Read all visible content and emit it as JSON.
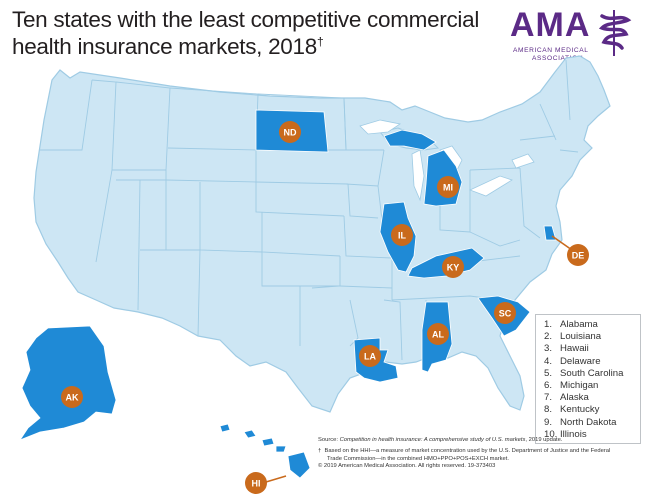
{
  "title": "Ten states with the least competitive commercial health insurance markets, 2018",
  "title_mark": "†",
  "logo": {
    "word": "AMA",
    "line1": "AMERICAN MEDICAL",
    "line2": "ASSOCIATION",
    "color": "#5b2a86"
  },
  "colors": {
    "ocean": "#ffffff",
    "land": "#cde6f4",
    "border": "#9fcbe4",
    "highlight": "#1f8ad6",
    "marker": "#c96a1c"
  },
  "markers": {
    "ND": "ND",
    "MI": "MI",
    "IL": "IL",
    "KY": "KY",
    "DE": "DE",
    "SC": "SC",
    "AL": "AL",
    "LA": "LA",
    "AK": "AK",
    "HI": "HI"
  },
  "legend": [
    {
      "num": "1.",
      "state": "Alabama"
    },
    {
      "num": "2.",
      "state": "Louisiana"
    },
    {
      "num": "3.",
      "state": "Hawaii"
    },
    {
      "num": "4.",
      "state": "Delaware"
    },
    {
      "num": "5.",
      "state": "South Carolina"
    },
    {
      "num": "6.",
      "state": "Michigan"
    },
    {
      "num": "7.",
      "state": "Alaska"
    },
    {
      "num": "8.",
      "state": "Kentucky"
    },
    {
      "num": "9.",
      "state": "North Dakota"
    },
    {
      "num": "10.",
      "state": "Illinois"
    }
  ],
  "footnotes": {
    "source_label": "Source:",
    "source_title": "Competition in health insurance: A comprehensive study of U.S. markets",
    "source_rest": ", 2019 update.",
    "dagger": "†",
    "note_line1": "Based on the HHI—a measure of market concentration used by the U.S. Department of Justice and the Federal",
    "note_line2": "Trade Commission—in the combined HMO+PPO+POS+EXCH market.",
    "copyright": "© 2019 American Medical Association. All rights reserved. 19-373403"
  }
}
